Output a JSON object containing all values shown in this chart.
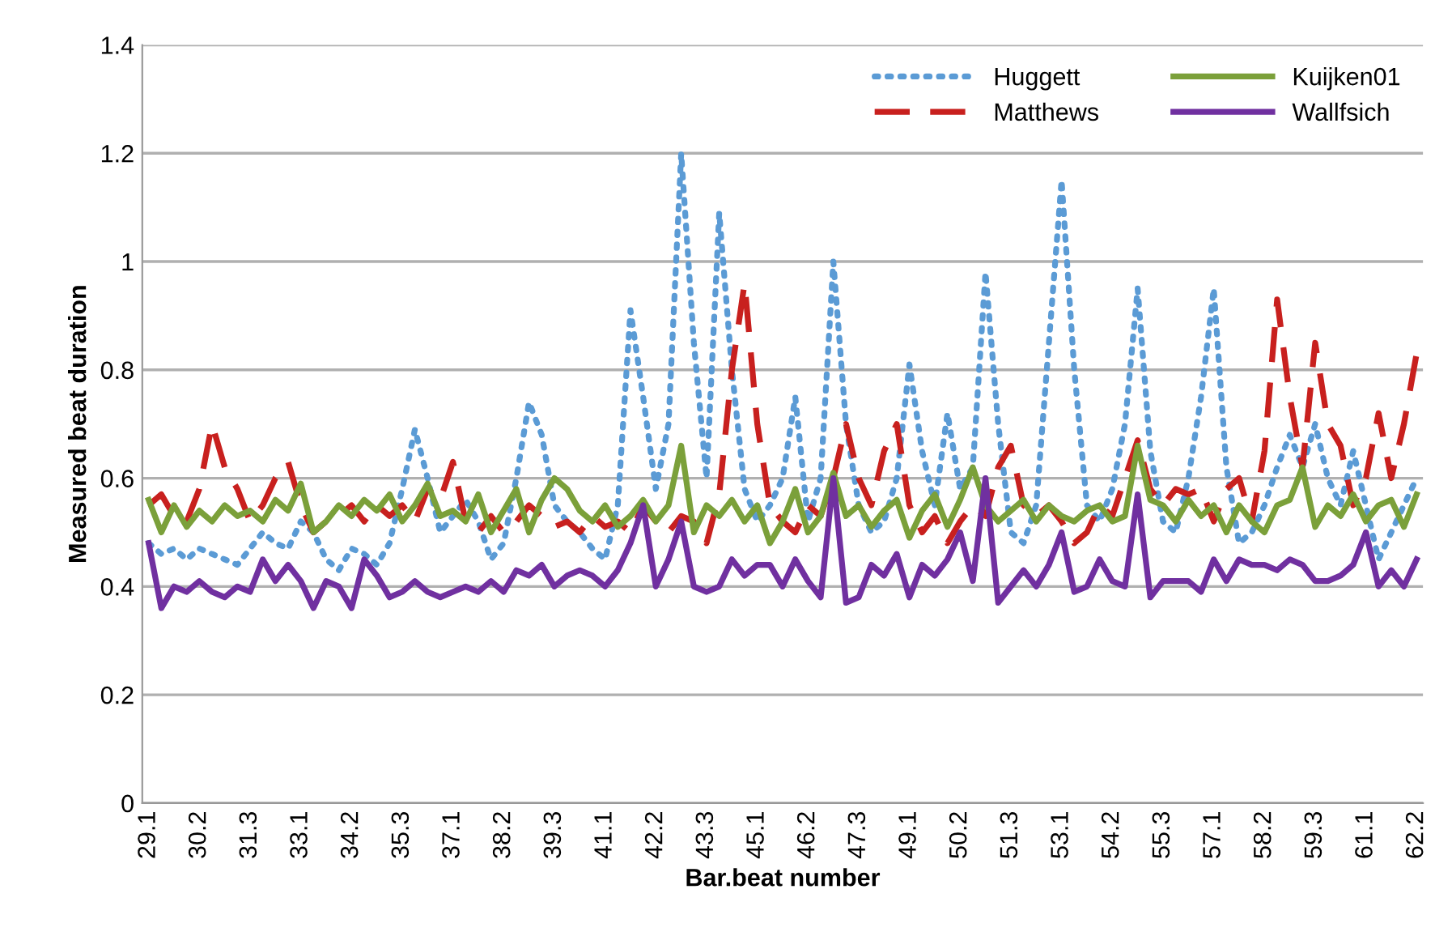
{
  "chart_data": {
    "type": "line",
    "xlabel": "Bar.beat number",
    "ylabel": "Measured beat duration",
    "categories": [
      "29.1",
      null,
      null,
      null,
      "30.2",
      null,
      null,
      null,
      "31.3",
      null,
      null,
      null,
      "33.1",
      null,
      null,
      null,
      "34.2",
      null,
      null,
      null,
      "35.3",
      null,
      null,
      null,
      "37.1",
      null,
      null,
      null,
      "38.2",
      null,
      null,
      null,
      "39.3",
      null,
      null,
      null,
      "41.1",
      null,
      null,
      null,
      "42.2",
      null,
      null,
      null,
      "43.3",
      null,
      null,
      null,
      "45.1",
      null,
      null,
      null,
      "46.2",
      null,
      null,
      null,
      "47.3",
      null,
      null,
      null,
      "49.1",
      null,
      null,
      null,
      "50.2",
      null,
      null,
      null,
      "51.3",
      null,
      null,
      null,
      "53.1",
      null,
      null,
      null,
      "54.2",
      null,
      null,
      null,
      "55.3",
      null,
      null,
      null,
      "57.1",
      null,
      null,
      null,
      "58.2",
      null,
      null,
      null,
      "59.3",
      null,
      null,
      null,
      "61.1",
      null,
      null,
      null,
      "62.2"
    ],
    "series": [
      {
        "name": "Huggett",
        "color": "#5b9bd5",
        "line_style": "dotted",
        "values": [
          0.48,
          0.46,
          0.47,
          0.45,
          0.47,
          0.46,
          0.45,
          0.44,
          0.47,
          0.5,
          0.48,
          0.47,
          0.52,
          0.5,
          0.45,
          0.43,
          0.47,
          0.46,
          0.44,
          0.48,
          0.58,
          0.69,
          0.6,
          0.5,
          0.53,
          0.56,
          0.52,
          0.45,
          0.48,
          0.6,
          0.74,
          0.68,
          0.55,
          0.52,
          0.5,
          0.47,
          0.45,
          0.55,
          0.91,
          0.75,
          0.58,
          0.7,
          1.2,
          0.85,
          0.6,
          1.09,
          0.8,
          0.58,
          0.52,
          0.55,
          0.6,
          0.75,
          0.52,
          0.6,
          1.0,
          0.7,
          0.55,
          0.5,
          0.52,
          0.6,
          0.81,
          0.65,
          0.55,
          0.72,
          0.58,
          0.62,
          0.98,
          0.7,
          0.5,
          0.48,
          0.55,
          0.85,
          1.15,
          0.8,
          0.55,
          0.52,
          0.58,
          0.7,
          0.95,
          0.65,
          0.52,
          0.5,
          0.6,
          0.75,
          0.95,
          0.62,
          0.48,
          0.5,
          0.55,
          0.62,
          0.68,
          0.62,
          0.7,
          0.6,
          0.55,
          0.65,
          0.55,
          0.45,
          0.5,
          0.55,
          0.6
        ]
      },
      {
        "name": "Matthews",
        "color": "#c8201e",
        "line_style": "dashed",
        "values": [
          0.55,
          0.57,
          0.53,
          0.52,
          0.58,
          0.7,
          0.62,
          0.58,
          0.52,
          0.55,
          0.6,
          0.63,
          0.55,
          0.5,
          0.52,
          0.53,
          0.55,
          0.52,
          0.55,
          0.53,
          0.55,
          0.52,
          0.58,
          0.56,
          0.63,
          0.52,
          0.5,
          0.53,
          0.5,
          0.52,
          0.55,
          0.53,
          0.51,
          0.52,
          0.5,
          0.53,
          0.51,
          0.52,
          0.5,
          0.55,
          0.52,
          0.5,
          0.53,
          0.52,
          0.48,
          0.57,
          0.8,
          0.96,
          0.7,
          0.55,
          0.52,
          0.5,
          0.55,
          0.53,
          0.6,
          0.7,
          0.6,
          0.55,
          0.65,
          0.7,
          0.55,
          0.5,
          0.53,
          0.48,
          0.52,
          0.55,
          0.53,
          0.62,
          0.66,
          0.55,
          0.53,
          0.55,
          0.52,
          0.48,
          0.5,
          0.55,
          0.53,
          0.6,
          0.67,
          0.58,
          0.55,
          0.58,
          0.57,
          0.58,
          0.52,
          0.58,
          0.6,
          0.52,
          0.65,
          0.93,
          0.75,
          0.62,
          0.85,
          0.7,
          0.66,
          0.55,
          0.6,
          0.72,
          0.6,
          0.7,
          0.83
        ]
      },
      {
        "name": "Kuijken01",
        "color": "#7ba03a",
        "line_style": "solid",
        "values": [
          0.56,
          0.5,
          0.55,
          0.51,
          0.54,
          0.52,
          0.55,
          0.53,
          0.54,
          0.52,
          0.56,
          0.54,
          0.59,
          0.5,
          0.52,
          0.55,
          0.53,
          0.56,
          0.54,
          0.57,
          0.52,
          0.55,
          0.59,
          0.53,
          0.54,
          0.52,
          0.57,
          0.5,
          0.54,
          0.58,
          0.5,
          0.56,
          0.6,
          0.58,
          0.54,
          0.52,
          0.55,
          0.51,
          0.53,
          0.56,
          0.52,
          0.55,
          0.66,
          0.5,
          0.55,
          0.53,
          0.56,
          0.52,
          0.55,
          0.48,
          0.52,
          0.58,
          0.5,
          0.53,
          0.61,
          0.53,
          0.55,
          0.51,
          0.54,
          0.56,
          0.49,
          0.54,
          0.57,
          0.51,
          0.56,
          0.62,
          0.55,
          0.52,
          0.54,
          0.56,
          0.52,
          0.55,
          0.53,
          0.52,
          0.54,
          0.55,
          0.52,
          0.53,
          0.66,
          0.56,
          0.55,
          0.52,
          0.56,
          0.53,
          0.55,
          0.5,
          0.55,
          0.52,
          0.5,
          0.55,
          0.56,
          0.62,
          0.51,
          0.55,
          0.53,
          0.57,
          0.52,
          0.55,
          0.56,
          0.51,
          0.57
        ]
      },
      {
        "name": "Wallfsich",
        "color": "#7030a0",
        "line_style": "solid",
        "values": [
          0.48,
          0.36,
          0.4,
          0.39,
          0.41,
          0.39,
          0.38,
          0.4,
          0.39,
          0.45,
          0.41,
          0.44,
          0.41,
          0.36,
          0.41,
          0.4,
          0.36,
          0.45,
          0.42,
          0.38,
          0.39,
          0.41,
          0.39,
          0.38,
          0.39,
          0.4,
          0.39,
          0.41,
          0.39,
          0.43,
          0.42,
          0.44,
          0.4,
          0.42,
          0.43,
          0.42,
          0.4,
          0.43,
          0.48,
          0.55,
          0.4,
          0.45,
          0.52,
          0.4,
          0.39,
          0.4,
          0.45,
          0.42,
          0.44,
          0.44,
          0.4,
          0.45,
          0.41,
          0.38,
          0.6,
          0.37,
          0.38,
          0.44,
          0.42,
          0.46,
          0.38,
          0.44,
          0.42,
          0.45,
          0.5,
          0.41,
          0.6,
          0.37,
          0.4,
          0.43,
          0.4,
          0.44,
          0.5,
          0.39,
          0.4,
          0.45,
          0.41,
          0.4,
          0.57,
          0.38,
          0.41,
          0.41,
          0.41,
          0.39,
          0.45,
          0.41,
          0.45,
          0.44,
          0.44,
          0.43,
          0.45,
          0.44,
          0.41,
          0.41,
          0.42,
          0.44,
          0.5,
          0.4,
          0.43,
          0.4,
          0.45
        ]
      }
    ],
    "ylim": [
      0,
      1.4
    ],
    "yticks": [
      0,
      0.2,
      0.4,
      0.6,
      0.8,
      1,
      1.2,
      1.4
    ],
    "grid": "y",
    "legend": "top right"
  }
}
